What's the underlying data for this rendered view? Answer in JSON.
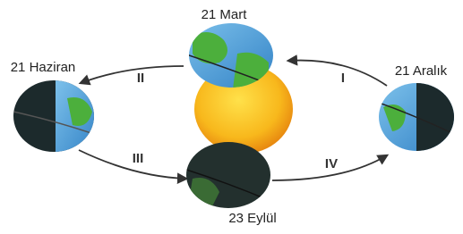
{
  "dates": {
    "march": "21 Mart",
    "june": "21 Haziran",
    "december": "21 Aralık",
    "september": "23 Eylül"
  },
  "arrows": [
    "I",
    "II",
    "III",
    "IV"
  ]
}
